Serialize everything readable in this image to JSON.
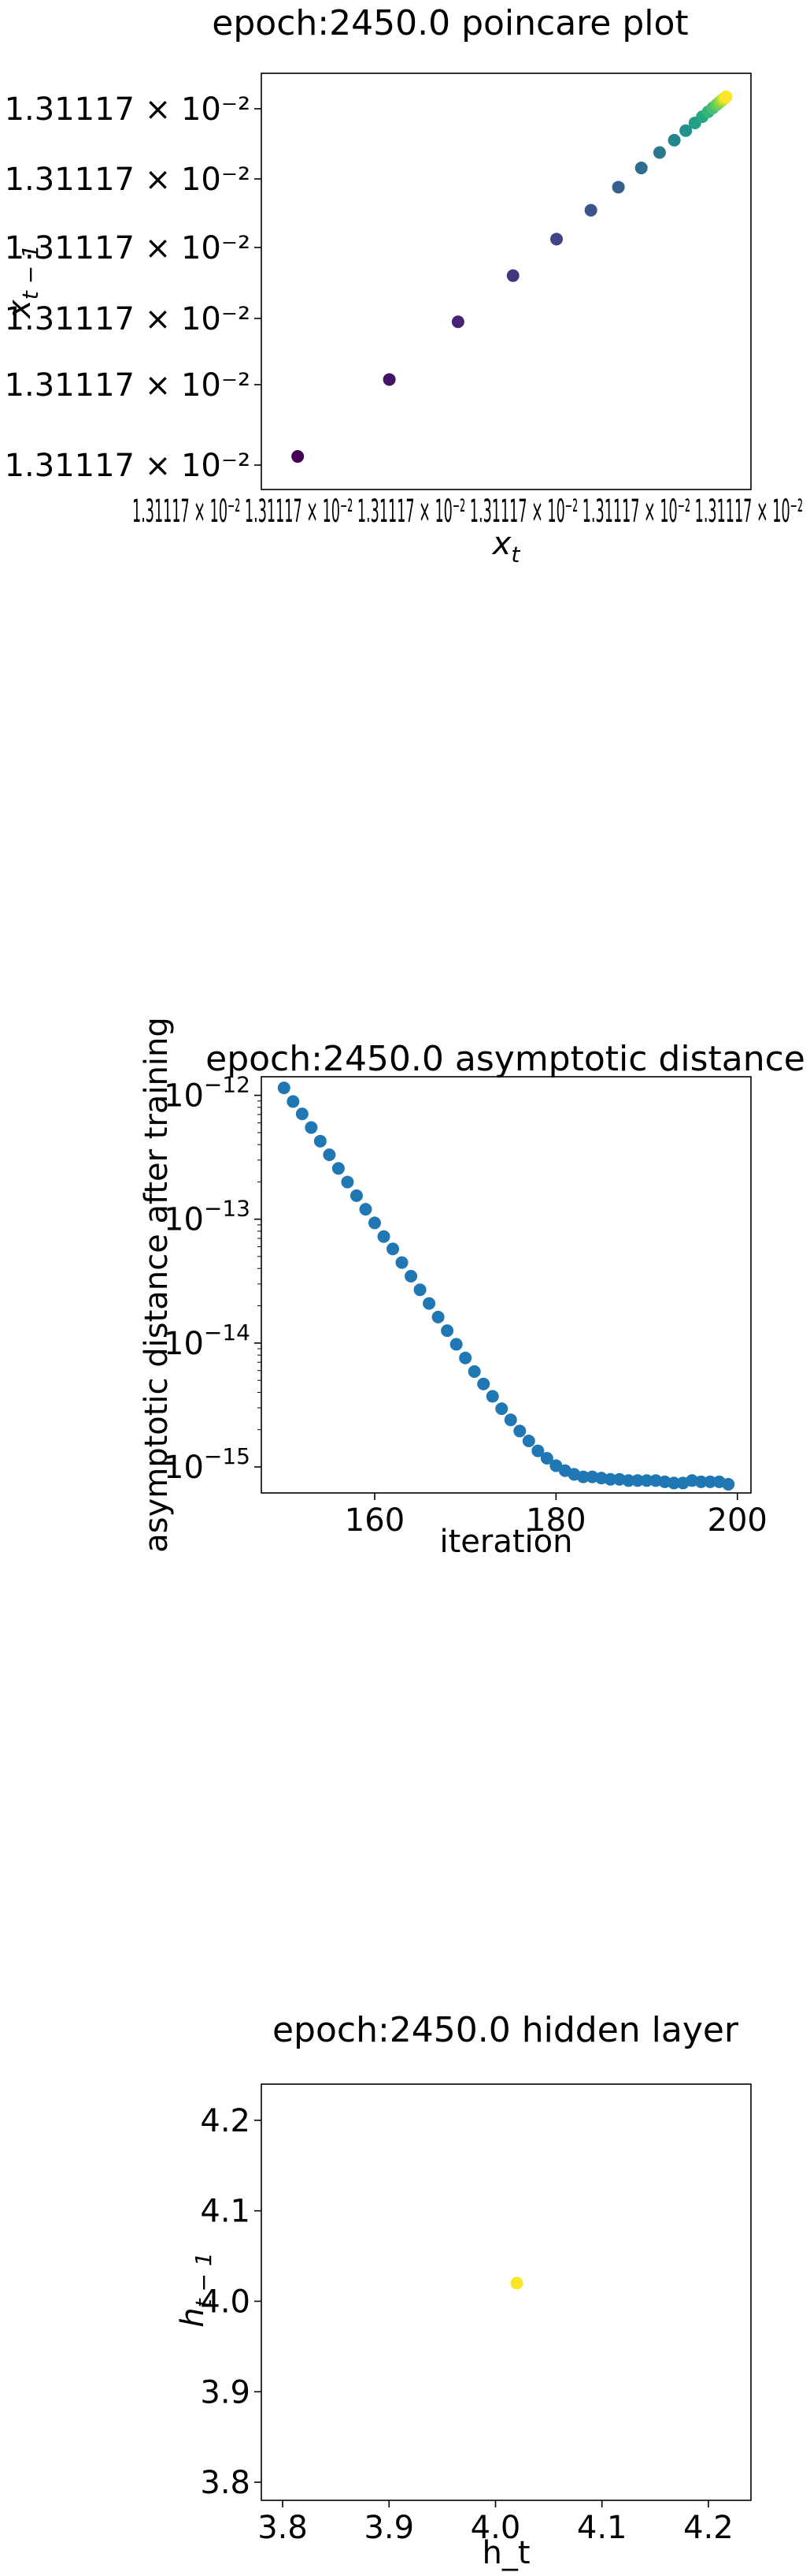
{
  "chart_data": [
    {
      "type": "scatter",
      "title": "epoch:2450.0 poincare plot",
      "xlabel": "x_t",
      "ylabel": "x_{t-1}",
      "xlabel_base": "x",
      "xlabel_sub": "t",
      "ylabel_base": "x",
      "ylabel_sub": "t − 1",
      "xlim": [
        0,
        1
      ],
      "ylim": [
        0,
        1
      ],
      "x_tick_text": "1.31117 × 10⁻² 1.31117 × 10⁻² 1.31117 × 10⁻² 1.31117 × 10⁻² 1.31117 × 10⁻² 1.31117 × 10⁻²",
      "y_tick_labels": [
        "1.31117 × 10⁻²",
        "1.31117 × 10⁻²",
        "1.31117 × 10⁻²",
        "1.31117 × 10⁻²",
        "1.31117 × 10⁻²",
        "1.31117 × 10⁻²"
      ],
      "colormap": "viridis",
      "points": [
        {
          "x": 0.045,
          "y": 0.045
        },
        {
          "x": 0.245,
          "y": 0.245
        },
        {
          "x": 0.395,
          "y": 0.395
        },
        {
          "x": 0.515,
          "y": 0.515
        },
        {
          "x": 0.61,
          "y": 0.61
        },
        {
          "x": 0.685,
          "y": 0.685
        },
        {
          "x": 0.745,
          "y": 0.745
        },
        {
          "x": 0.795,
          "y": 0.795
        },
        {
          "x": 0.835,
          "y": 0.835
        },
        {
          "x": 0.867,
          "y": 0.867
        },
        {
          "x": 0.892,
          "y": 0.892
        },
        {
          "x": 0.912,
          "y": 0.912
        },
        {
          "x": 0.928,
          "y": 0.928
        },
        {
          "x": 0.941,
          "y": 0.941
        },
        {
          "x": 0.951,
          "y": 0.951
        },
        {
          "x": 0.959,
          "y": 0.959
        },
        {
          "x": 0.965,
          "y": 0.965
        },
        {
          "x": 0.97,
          "y": 0.97
        },
        {
          "x": 0.974,
          "y": 0.974
        },
        {
          "x": 0.977,
          "y": 0.977
        },
        {
          "x": 0.98,
          "y": 0.98
        }
      ]
    },
    {
      "type": "scatter",
      "title": "epoch:2450.0 asymptotic distance",
      "xlabel": "iteration",
      "ylabel": "asymptotic distance after training",
      "y_scale": "log",
      "xlim": [
        147.5,
        201.5
      ],
      "ylim_exp": [
        -15.21,
        -11.85
      ],
      "x_ticks": [
        160,
        180,
        200
      ],
      "x_tick_labels": [
        "160",
        "180",
        "200"
      ],
      "y_ticks_exp": [
        -12,
        -13,
        -14,
        -15
      ],
      "y_tick_base": "10",
      "y_tick_exps": [
        "−12",
        "−13",
        "−14",
        "−15"
      ],
      "color": "#1f77b4",
      "x": [
        150,
        151,
        152,
        153,
        154,
        155,
        156,
        157,
        158,
        159,
        160,
        161,
        162,
        163,
        164,
        165,
        166,
        167,
        168,
        169,
        170,
        171,
        172,
        173,
        174,
        175,
        176,
        177,
        178,
        179,
        180,
        181,
        182,
        183,
        184,
        185,
        186,
        187,
        188,
        189,
        190,
        191,
        192,
        193,
        194,
        195,
        196,
        197,
        198,
        199
      ],
      "y_exp": [
        -11.94,
        -12.05,
        -12.15,
        -12.26,
        -12.37,
        -12.48,
        -12.59,
        -12.7,
        -12.81,
        -12.92,
        -13.03,
        -13.14,
        -13.24,
        -13.35,
        -13.46,
        -13.57,
        -13.68,
        -13.79,
        -13.9,
        -14.01,
        -14.12,
        -14.23,
        -14.33,
        -14.43,
        -14.53,
        -14.62,
        -14.71,
        -14.79,
        -14.87,
        -14.93,
        -14.99,
        -15.03,
        -15.06,
        -15.08,
        -15.08,
        -15.09,
        -15.1,
        -15.1,
        -15.11,
        -15.11,
        -15.11,
        -15.11,
        -15.12,
        -15.13,
        -15.13,
        -15.11,
        -15.12,
        -15.12,
        -15.12,
        -15.14
      ]
    },
    {
      "type": "scatter",
      "title": "epoch:2450.0 hidden layer",
      "xlabel": "h_t",
      "ylabel": "h_{t-1}",
      "ylabel_base": "h",
      "ylabel_sub": "t − 1",
      "xlim": [
        3.78,
        4.24
      ],
      "ylim": [
        3.78,
        4.24
      ],
      "x_ticks": [
        3.8,
        3.9,
        4.0,
        4.1,
        4.2
      ],
      "x_tick_labels": [
        "3.8",
        "3.9",
        "4.0",
        "4.1",
        "4.2"
      ],
      "y_ticks": [
        3.8,
        3.9,
        4.0,
        4.1,
        4.2
      ],
      "y_tick_labels": [
        "3.8",
        "3.9",
        "4.0",
        "4.1",
        "4.2"
      ],
      "color": "#fde725",
      "points": [
        {
          "x": 4.02,
          "y": 4.02
        }
      ]
    }
  ]
}
